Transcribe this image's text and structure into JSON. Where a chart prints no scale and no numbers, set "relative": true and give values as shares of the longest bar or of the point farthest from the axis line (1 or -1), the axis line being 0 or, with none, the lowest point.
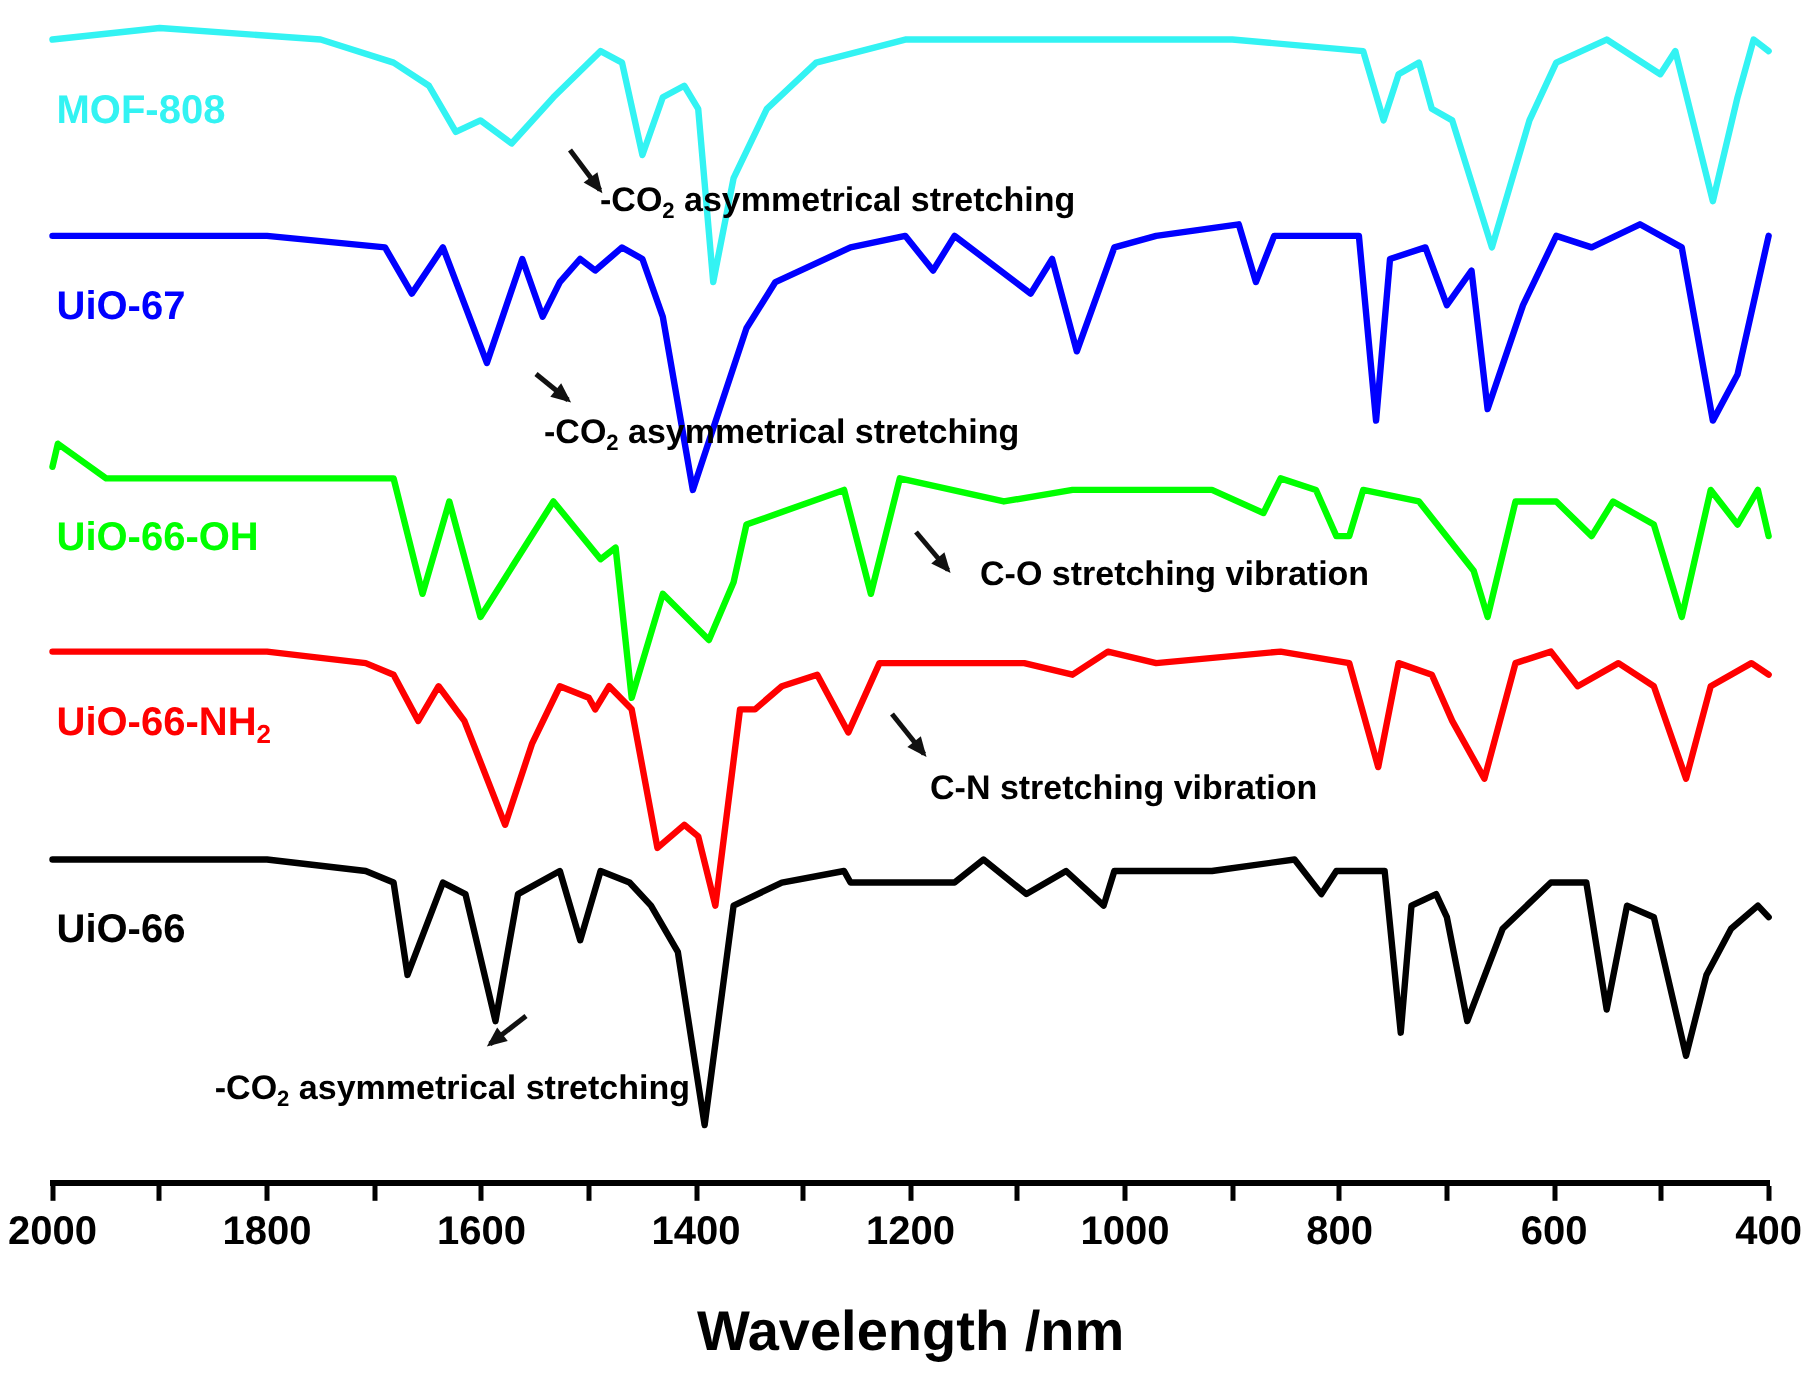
{
  "chart_data": {
    "type": "line",
    "relative": true,
    "xlabel": "Wavelength /nm",
    "xlim": [
      2000,
      400
    ],
    "xticks": [
      2000,
      {
        "value": 1900,
        "label": null
      },
      1800,
      {
        "value": 1700,
        "label": null
      },
      1600,
      {
        "value": 1500,
        "label": null
      },
      1400,
      {
        "value": 1300,
        "label": null
      },
      1200,
      {
        "value": 1100,
        "label": null
      },
      1000,
      {
        "value": 900,
        "label": null
      },
      800,
      {
        "value": 700,
        "label": null
      },
      600,
      {
        "value": 500,
        "label": null
      },
      400
    ],
    "grid": false,
    "legend": false,
    "marker": "none",
    "line_style": "solid",
    "tick_labels": "x",
    "series": [
      {
        "name": "MOF-808",
        "color": "#33f3f3",
        "x": [
          2000,
          1900,
          1750,
          1682,
          1649,
          1624,
          1601,
          1572,
          1533,
          1489,
          1469,
          1450,
          1431,
          1411,
          1398,
          1384,
          1365,
          1334,
          1288,
          1205,
          1113,
          900,
          778,
          759,
          745,
          726,
          714,
          695,
          658,
          623,
          598,
          551,
          501,
          487,
          452,
          429,
          414,
          400
        ],
        "values": [
          0.99,
          1.0,
          0.99,
          0.97,
          0.95,
          0.91,
          0.92,
          0.9,
          0.94,
          0.98,
          0.97,
          0.89,
          0.94,
          0.95,
          0.93,
          0.78,
          0.87,
          0.93,
          0.97,
          0.99,
          0.99,
          0.99,
          0.98,
          0.92,
          0.96,
          0.97,
          0.93,
          0.92,
          0.81,
          0.92,
          0.97,
          0.99,
          0.96,
          0.98,
          0.85,
          0.94,
          0.99,
          0.98
        ]
      },
      {
        "name": "UiO-67",
        "color": "#0000ff",
        "x": [
          2000,
          1800,
          1690,
          1665,
          1636,
          1595,
          1562,
          1543,
          1527,
          1508,
          1494,
          1469,
          1450,
          1431,
          1403,
          1378,
          1353,
          1326,
          1256,
          1205,
          1179,
          1159,
          1088,
          1068,
          1045,
          1010,
          971,
          894,
          878,
          861,
          791,
          782,
          766,
          753,
          720,
          700,
          677,
          662,
          629,
          598,
          565,
          520,
          481,
          452,
          429,
          400
        ],
        "values": [
          0.82,
          0.82,
          0.81,
          0.77,
          0.81,
          0.71,
          0.8,
          0.75,
          0.78,
          0.8,
          0.79,
          0.81,
          0.8,
          0.75,
          0.6,
          0.67,
          0.74,
          0.78,
          0.81,
          0.82,
          0.79,
          0.82,
          0.77,
          0.8,
          0.72,
          0.81,
          0.82,
          0.83,
          0.78,
          0.82,
          0.82,
          0.82,
          0.66,
          0.8,
          0.81,
          0.76,
          0.79,
          0.67,
          0.76,
          0.82,
          0.81,
          0.83,
          0.81,
          0.66,
          0.7,
          0.82
        ]
      },
      {
        "name": "UiO-66-OH",
        "color": "#00ff00",
        "x": [
          2000,
          1995,
          1950,
          1800,
          1700,
          1682,
          1655,
          1630,
          1601,
          1533,
          1489,
          1475,
          1460,
          1431,
          1388,
          1365,
          1353,
          1262,
          1237,
          1210,
          1113,
          1049,
          919,
          871,
          855,
          822,
          803,
          791,
          778,
          726,
          675,
          662,
          636,
          598,
          565,
          545,
          507,
          481,
          454,
          429,
          410,
          400
        ],
        "values": [
          0.62,
          0.64,
          0.61,
          0.61,
          0.61,
          0.61,
          0.51,
          0.59,
          0.49,
          0.59,
          0.54,
          0.55,
          0.42,
          0.51,
          0.47,
          0.52,
          0.57,
          0.6,
          0.51,
          0.61,
          0.59,
          0.6,
          0.6,
          0.58,
          0.61,
          0.6,
          0.56,
          0.56,
          0.6,
          0.59,
          0.53,
          0.49,
          0.59,
          0.59,
          0.56,
          0.59,
          0.57,
          0.49,
          0.6,
          0.57,
          0.6,
          0.56
        ]
      },
      {
        "name": "UiO-66-NH$_{2}$",
        "color": "#ff0000",
        "x": [
          2000,
          1800,
          1708,
          1682,
          1659,
          1640,
          1616,
          1578,
          1553,
          1527,
          1500,
          1494,
          1481,
          1460,
          1436,
          1411,
          1398,
          1382,
          1359,
          1345,
          1320,
          1287,
          1258,
          1229,
          1179,
          1094,
          1049,
          1016,
          971,
          855,
          791,
          764,
          745,
          714,
          695,
          665,
          636,
          603,
          578,
          540,
          507,
          477,
          454,
          416,
          400
        ],
        "values": [
          0.46,
          0.46,
          0.45,
          0.44,
          0.4,
          0.43,
          0.4,
          0.31,
          0.38,
          0.43,
          0.42,
          0.41,
          0.43,
          0.41,
          0.29,
          0.31,
          0.3,
          0.24,
          0.41,
          0.41,
          0.43,
          0.44,
          0.39,
          0.45,
          0.45,
          0.45,
          0.44,
          0.46,
          0.45,
          0.46,
          0.45,
          0.36,
          0.45,
          0.44,
          0.4,
          0.35,
          0.45,
          0.46,
          0.43,
          0.45,
          0.43,
          0.35,
          0.43,
          0.45,
          0.44
        ]
      },
      {
        "name": "UiO-66",
        "color": "#000000",
        "x": [
          2000,
          1800,
          1708,
          1682,
          1669,
          1636,
          1615,
          1587,
          1566,
          1527,
          1508,
          1489,
          1462,
          1442,
          1417,
          1392,
          1365,
          1320,
          1262,
          1256,
          1159,
          1132,
          1092,
          1055,
          1020,
          1010,
          919,
          842,
          817,
          803,
          758,
          743,
          733,
          710,
          700,
          681,
          648,
          603,
          570,
          551,
          532,
          507,
          477,
          458,
          435,
          410,
          400
        ],
        "values": [
          0.28,
          0.28,
          0.27,
          0.26,
          0.18,
          0.26,
          0.25,
          0.14,
          0.25,
          0.27,
          0.21,
          0.27,
          0.26,
          0.24,
          0.2,
          0.05,
          0.24,
          0.26,
          0.27,
          0.26,
          0.26,
          0.28,
          0.25,
          0.27,
          0.24,
          0.27,
          0.27,
          0.28,
          0.25,
          0.27,
          0.27,
          0.13,
          0.24,
          0.25,
          0.23,
          0.14,
          0.22,
          0.26,
          0.26,
          0.15,
          0.24,
          0.23,
          0.11,
          0.18,
          0.22,
          0.24,
          0.23
        ]
      }
    ],
    "annotations": [
      "-CO$_{2}$ asymmetrical stretching",
      "-CO$_{2}$ asymmetrical stretching",
      "C-O stretching vibration",
      "C-N stretching vibration",
      "-CO$_{2}$ asymmetrical stretching"
    ]
  }
}
